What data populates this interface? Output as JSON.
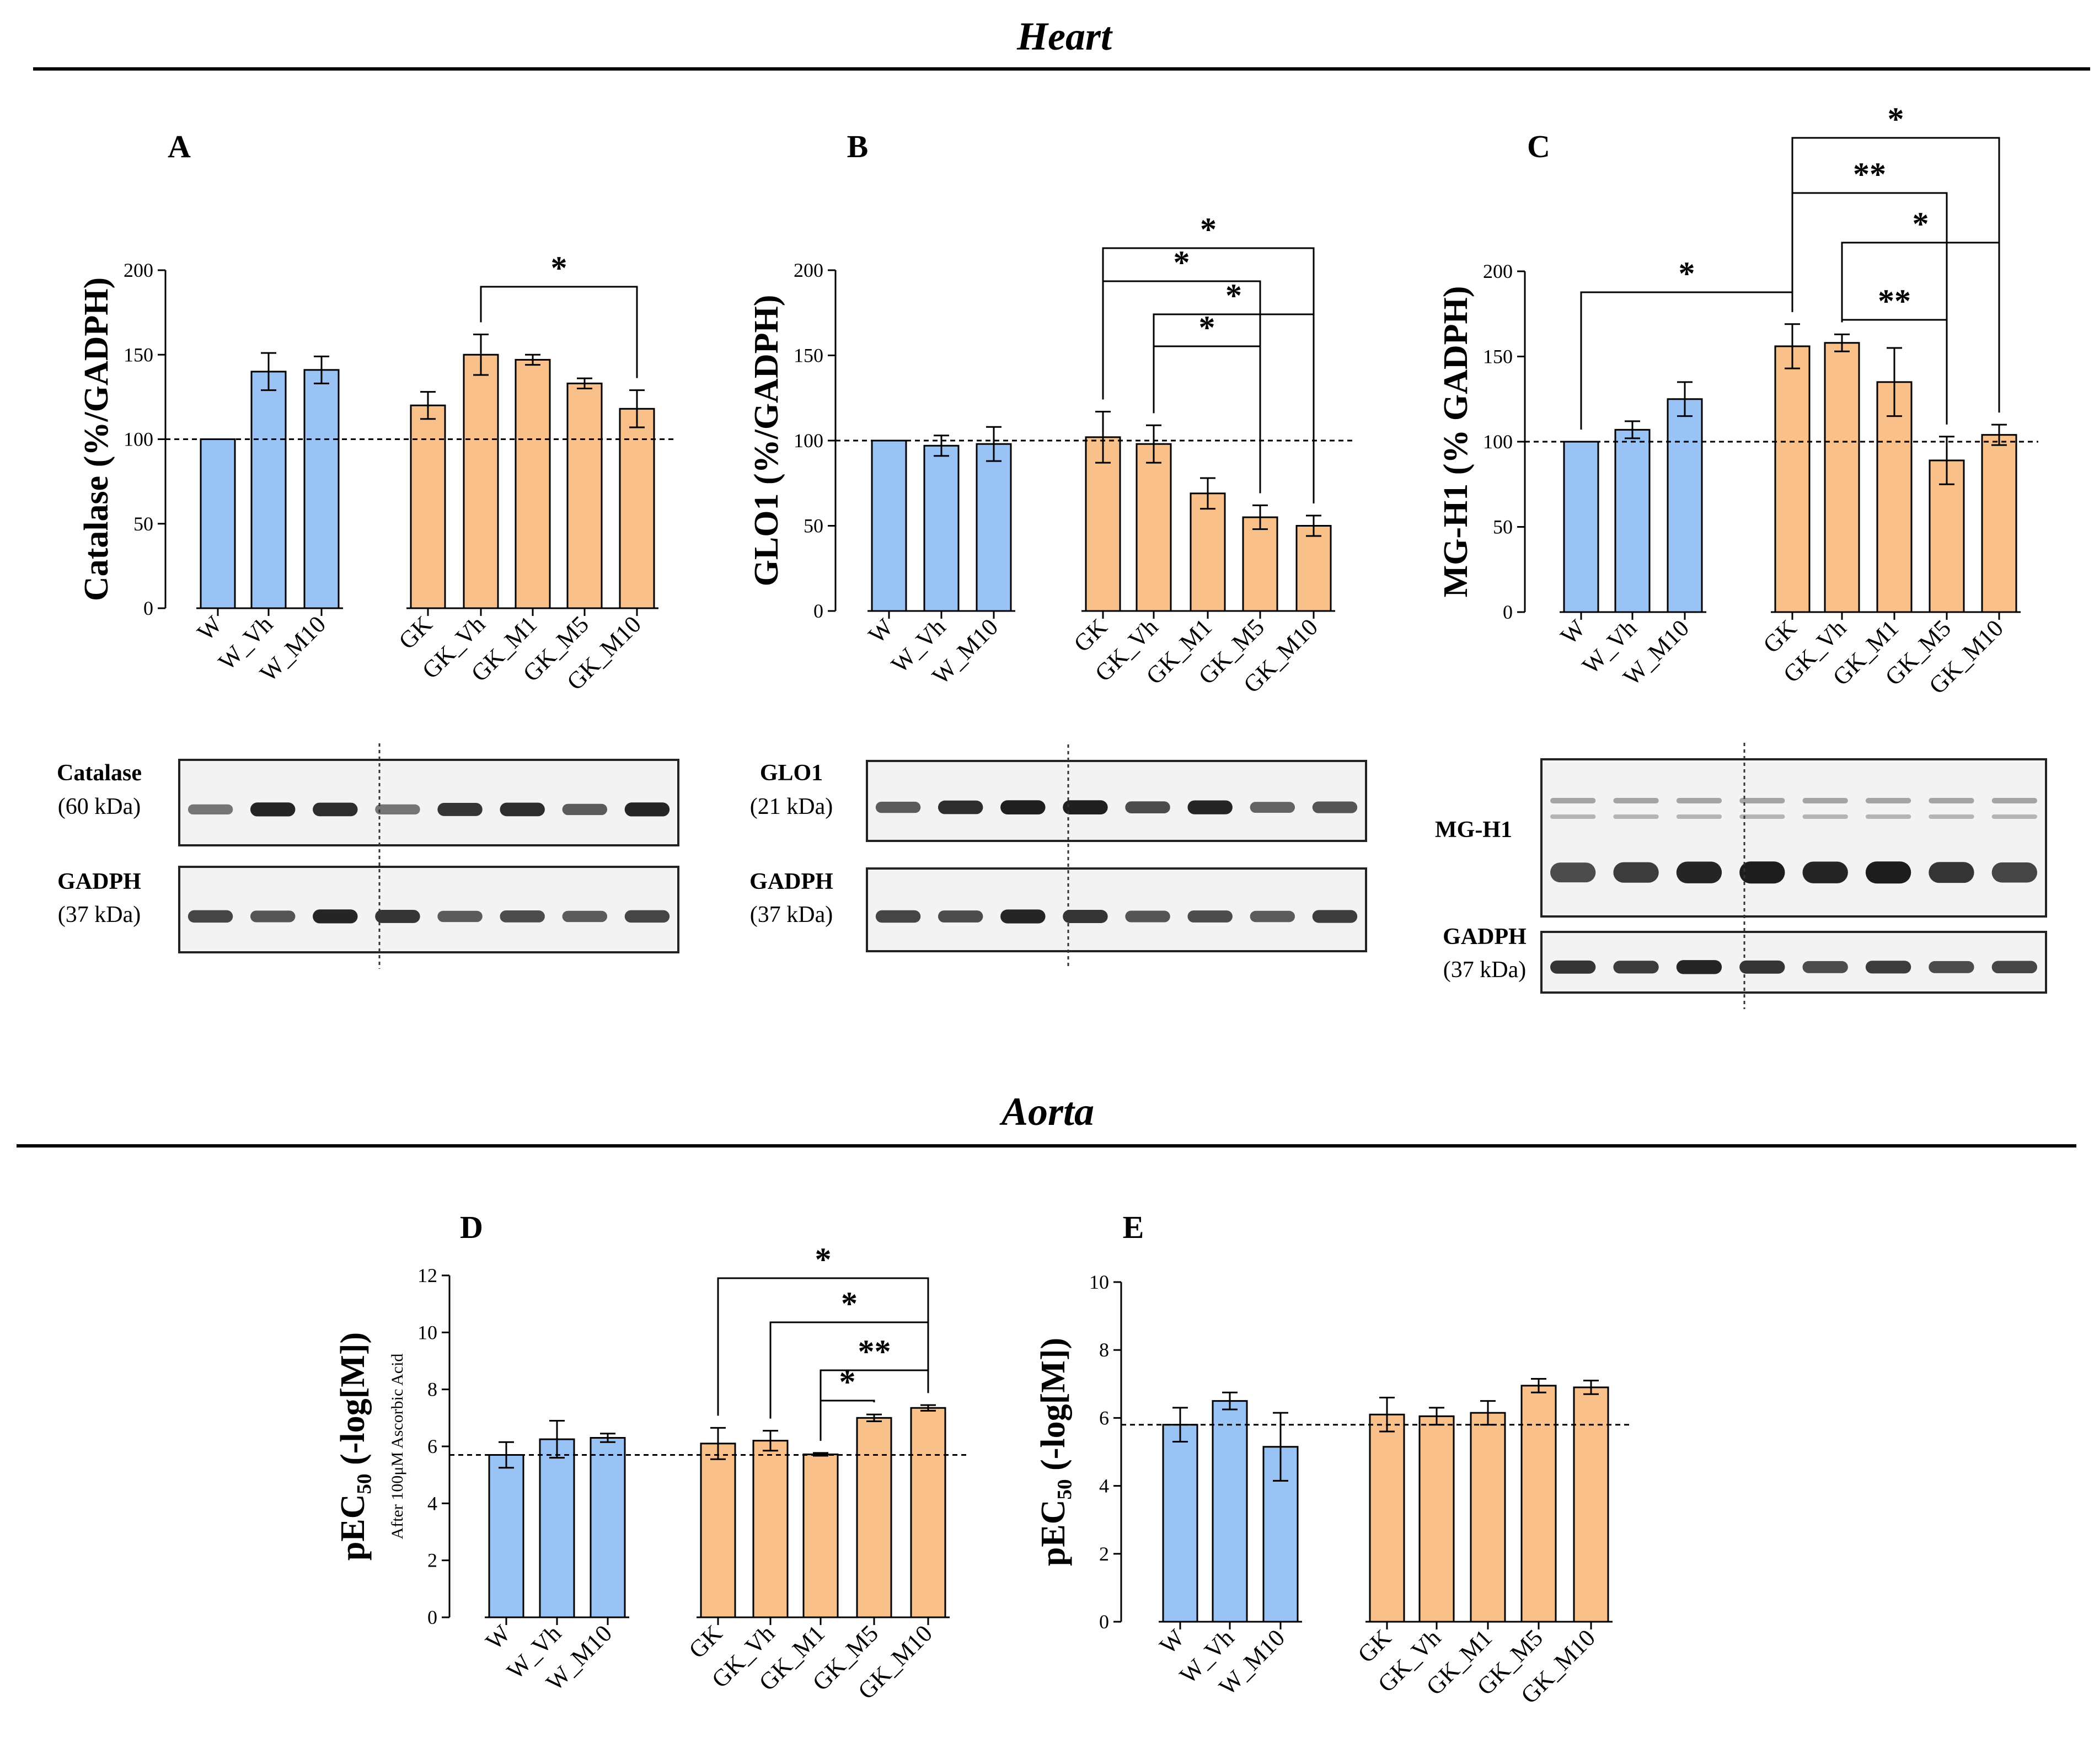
{
  "sections": {
    "heart_title": "Heart",
    "aorta_title": "Aorta"
  },
  "colors": {
    "control_bar": "#99C2F5",
    "diabetic_bar": "#F9C08A",
    "bar_stroke": "#000000",
    "blot_background": "#f3f3f3",
    "band": "#111111"
  },
  "chart_data": [
    {
      "id": "A",
      "letter": "A",
      "type": "bar",
      "ylabel": "Catalase (%/GADPH)",
      "ylabel_sub": "",
      "ylim": [
        0,
        200
      ],
      "yticks": [
        0,
        50,
        100,
        150,
        200
      ],
      "reference_line": 100,
      "groups": [
        {
          "name": "control",
          "categories": [
            "W",
            "W_Vh",
            "W_M10"
          ],
          "values": [
            100,
            140,
            141
          ],
          "errors": [
            0,
            11,
            8
          ]
        },
        {
          "name": "diabetic",
          "categories": [
            "GK",
            "GK_Vh",
            "GK_M1",
            "GK_M5",
            "GK_M10"
          ],
          "values": [
            120,
            150,
            147,
            133,
            118
          ],
          "errors": [
            8,
            12,
            3,
            3,
            11
          ]
        }
      ],
      "significance": [
        {
          "from": "GK_Vh",
          "to": "GK_M10",
          "label": "*",
          "level": 1
        }
      ]
    },
    {
      "id": "B",
      "letter": "B",
      "type": "bar",
      "ylabel": "GLO1 (%/GADPH)",
      "ylabel_sub": "",
      "ylim": [
        0,
        200
      ],
      "yticks": [
        0,
        50,
        100,
        150,
        200
      ],
      "reference_line": 100,
      "groups": [
        {
          "name": "control",
          "categories": [
            "W",
            "W_Vh",
            "W_M10"
          ],
          "values": [
            100,
            97,
            98
          ],
          "errors": [
            0,
            6,
            10
          ]
        },
        {
          "name": "diabetic",
          "categories": [
            "GK",
            "GK_Vh",
            "GK_M1",
            "GK_M5",
            "GK_M10"
          ],
          "values": [
            102,
            98,
            69,
            55,
            50
          ],
          "errors": [
            15,
            11,
            9,
            7,
            6
          ]
        }
      ],
      "significance": [
        {
          "from": "GK_Vh",
          "to": "GK_M5",
          "label": "*",
          "level": 1
        },
        {
          "from": "GK_Vh",
          "to": "GK_M10",
          "label": "*",
          "level": 2
        },
        {
          "from": "GK",
          "to": "GK_M5",
          "label": "*",
          "level": 3
        },
        {
          "from": "GK",
          "to": "GK_M10",
          "label": "*",
          "level": 4
        }
      ]
    },
    {
      "id": "C",
      "letter": "C",
      "type": "bar",
      "ylabel": "MG-H1 (% GADPH)",
      "ylabel_sub": "",
      "ylim": [
        0,
        200
      ],
      "yticks": [
        0,
        50,
        100,
        150,
        200
      ],
      "reference_line": 100,
      "groups": [
        {
          "name": "control",
          "categories": [
            "W",
            "W_Vh",
            "W_M10"
          ],
          "values": [
            100,
            107,
            125
          ],
          "errors": [
            0,
            5,
            10
          ]
        },
        {
          "name": "diabetic",
          "categories": [
            "GK",
            "GK_Vh",
            "GK_M1",
            "GK_M5",
            "GK_M10"
          ],
          "values": [
            156,
            158,
            135,
            89,
            104
          ],
          "errors": [
            13,
            5,
            20,
            14,
            6
          ]
        }
      ],
      "significance": [
        {
          "from": "W",
          "to": "GK",
          "label": "*",
          "level": 1
        },
        {
          "from": "GK_Vh",
          "to": "GK_M5",
          "label": "**",
          "level": 1
        },
        {
          "from": "GK_Vh",
          "to": "GK_M10",
          "label": "*",
          "level": 2
        },
        {
          "from": "GK",
          "to": "GK_M5",
          "label": "**",
          "level": 3
        },
        {
          "from": "GK",
          "to": "GK_M10",
          "label": "*",
          "level": 4
        }
      ]
    },
    {
      "id": "D",
      "letter": "D",
      "type": "bar",
      "ylabel": "pEC₅₀ (-log[M])",
      "ylabel_sub": "After 100μM Ascorbic Acid",
      "ylim": [
        0,
        12
      ],
      "yticks": [
        0,
        2,
        4,
        6,
        8,
        10,
        12
      ],
      "reference_line": 5.7,
      "groups": [
        {
          "name": "control",
          "categories": [
            "W",
            "W_Vh",
            "W_M10"
          ],
          "values": [
            5.7,
            6.25,
            6.3
          ],
          "errors": [
            0.45,
            0.65,
            0.15
          ]
        },
        {
          "name": "diabetic",
          "categories": [
            "GK",
            "GK_Vh",
            "GK_M1",
            "GK_M5",
            "GK_M10"
          ],
          "values": [
            6.1,
            6.2,
            5.72,
            7.0,
            7.35
          ],
          "errors": [
            0.55,
            0.35,
            0.05,
            0.12,
            0.1
          ]
        }
      ],
      "significance": [
        {
          "from": "GK_M1",
          "to": "GK_M5",
          "label": "*",
          "level": 1
        },
        {
          "from": "GK_M1",
          "to": "GK_M10",
          "label": "**",
          "level": 2
        },
        {
          "from": "GK_Vh",
          "to": "GK_M10",
          "label": "*",
          "level": 3
        },
        {
          "from": "GK",
          "to": "GK_M10",
          "label": "*",
          "level": 4
        }
      ]
    },
    {
      "id": "E",
      "letter": "E",
      "type": "bar",
      "ylabel": "pEC₅₀ (-log[M])",
      "ylabel_sub": "",
      "ylim": [
        0,
        10
      ],
      "yticks": [
        0,
        2,
        4,
        6,
        8,
        10
      ],
      "reference_line": 5.8,
      "groups": [
        {
          "name": "control",
          "categories": [
            "W",
            "W_Vh",
            "W_M10"
          ],
          "values": [
            5.8,
            6.5,
            5.15
          ],
          "errors": [
            0.5,
            0.25,
            1.0
          ]
        },
        {
          "name": "diabetic",
          "categories": [
            "GK",
            "GK_Vh",
            "GK_M1",
            "GK_M5",
            "GK_M10"
          ],
          "values": [
            6.1,
            6.05,
            6.15,
            6.95,
            6.9
          ],
          "errors": [
            0.5,
            0.25,
            0.35,
            0.2,
            0.2
          ]
        }
      ],
      "significance": []
    }
  ],
  "blots": [
    {
      "id": "A",
      "rows": [
        {
          "protein": "Catalase",
          "kda": "(60 kDa)",
          "intensity": [
            0.45,
            0.95,
            0.9,
            0.45,
            0.85,
            0.9,
            0.6,
            0.95
          ]
        },
        {
          "protein": "GADPH",
          "kda": "(37 kDa)",
          "intensity": [
            0.75,
            0.65,
            0.95,
            0.85,
            0.6,
            0.7,
            0.6,
            0.75
          ]
        }
      ]
    },
    {
      "id": "B",
      "rows": [
        {
          "protein": "GLO1",
          "kda": "(21 kDa)",
          "intensity": [
            0.6,
            0.9,
            0.98,
            0.98,
            0.7,
            0.95,
            0.55,
            0.65
          ]
        },
        {
          "protein": "GADPH",
          "kda": "(37 kDa)",
          "intensity": [
            0.75,
            0.7,
            0.95,
            0.85,
            0.65,
            0.7,
            0.6,
            0.8
          ]
        }
      ]
    },
    {
      "id": "C",
      "rows": [
        {
          "protein": "MG-H1",
          "kda": "",
          "intensity": [
            0.7,
            0.8,
            0.95,
            1.0,
            0.95,
            1.0,
            0.85,
            0.75
          ]
        },
        {
          "protein": "GADPH",
          "kda": "(37 kDa)",
          "intensity": [
            0.85,
            0.8,
            0.95,
            0.85,
            0.7,
            0.8,
            0.7,
            0.75
          ]
        }
      ]
    }
  ]
}
